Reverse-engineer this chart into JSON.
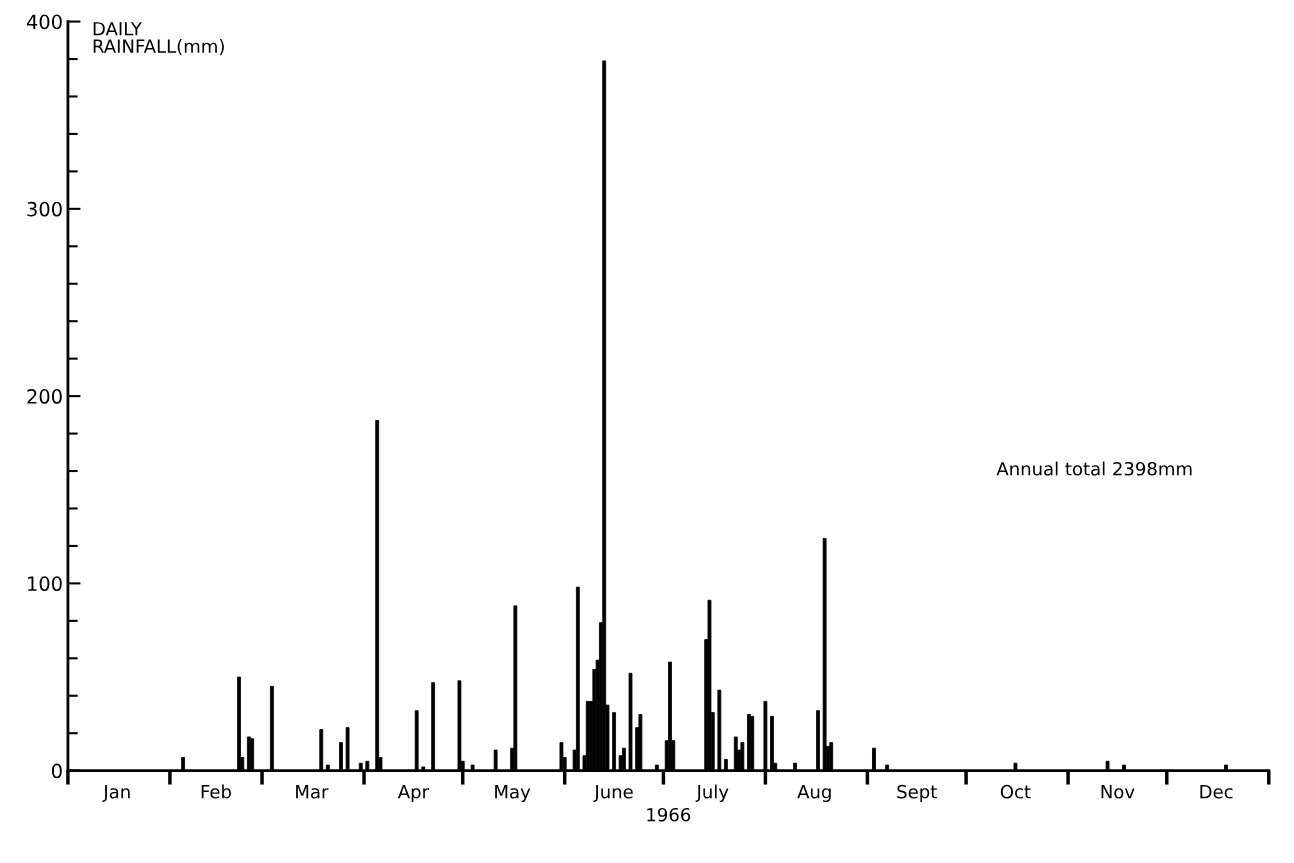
{
  "chart_data": {
    "type": "bar",
    "xlabel": "1966",
    "ylabel": "DAILY\nRAINFALL(mm)",
    "color": "#000000",
    "x": [
      "1966-02-05",
      "1966-02-22",
      "1966-02-23",
      "1966-02-25",
      "1966-02-26",
      "1966-03-04",
      "1966-03-19",
      "1966-03-21",
      "1966-03-25",
      "1966-03-27",
      "1966-03-31",
      "1966-04-02",
      "1966-04-05",
      "1966-04-06",
      "1966-04-17",
      "1966-04-19",
      "1966-04-22",
      "1966-04-30",
      "1966-05-01",
      "1966-05-04",
      "1966-05-11",
      "1966-05-16",
      "1966-05-17",
      "1966-05-31",
      "1966-06-01",
      "1966-06-04",
      "1966-06-05",
      "1966-06-07",
      "1966-06-08",
      "1966-06-09",
      "1966-06-10",
      "1966-06-11",
      "1966-06-12",
      "1966-06-13",
      "1966-06-14",
      "1966-06-16",
      "1966-06-18",
      "1966-06-19",
      "1966-06-21",
      "1966-06-23",
      "1966-06-24",
      "1966-06-29",
      "1966-07-02",
      "1966-07-03",
      "1966-07-04",
      "1966-07-14",
      "1966-07-15",
      "1966-07-16",
      "1966-07-18",
      "1966-07-20",
      "1966-07-23",
      "1966-07-24",
      "1966-07-25",
      "1966-07-27",
      "1966-07-28",
      "1966-08-01",
      "1966-08-03",
      "1966-08-04",
      "1966-08-10",
      "1966-08-17",
      "1966-08-19",
      "1966-08-20",
      "1966-08-21",
      "1966-09-03",
      "1966-09-07",
      "1966-10-16",
      "1966-11-13",
      "1966-11-18",
      "1966-12-19"
    ],
    "values": [
      7,
      50,
      7,
      18,
      17,
      45,
      22,
      3,
      15,
      23,
      4,
      5,
      187,
      7,
      32,
      2,
      47,
      48,
      5,
      3,
      11,
      12,
      88,
      15,
      7,
      11,
      98,
      8,
      37,
      37,
      54,
      59,
      79,
      379,
      35,
      31,
      8,
      12,
      52,
      23,
      30,
      3,
      16,
      58,
      16,
      70,
      91,
      31,
      43,
      6,
      18,
      11,
      15,
      30,
      29,
      37,
      29,
      4,
      4,
      32,
      124,
      13,
      15,
      12,
      3,
      4,
      5,
      3,
      3
    ],
    "xlim": [
      "1966-01-01",
      "1967-01-01"
    ],
    "xticks": [
      {
        "value": "1966-01-01",
        "label": null
      },
      {
        "value": "1966-01-16",
        "label": "Jan"
      },
      {
        "value": "1966-02-01",
        "label": null
      },
      {
        "value": "1966-02-15",
        "label": "Feb"
      },
      {
        "value": "1966-03-01",
        "label": null
      },
      {
        "value": "1966-03-16",
        "label": "Mar"
      },
      {
        "value": "1966-04-01",
        "label": null
      },
      {
        "value": "1966-04-16",
        "label": "Apr"
      },
      {
        "value": "1966-05-01",
        "label": null
      },
      {
        "value": "1966-05-16",
        "label": "May"
      },
      {
        "value": "1966-06-01",
        "label": null
      },
      {
        "value": "1966-06-16",
        "label": "June"
      },
      {
        "value": "1966-07-01",
        "label": null
      },
      {
        "value": "1966-07-16",
        "label": "July"
      },
      {
        "value": "1966-08-01",
        "label": null
      },
      {
        "value": "1966-08-16",
        "label": "Aug"
      },
      {
        "value": "1966-09-01",
        "label": null
      },
      {
        "value": "1966-09-16",
        "label": "Sept"
      },
      {
        "value": "1966-10-01",
        "label": null
      },
      {
        "value": "1966-10-16",
        "label": "Oct"
      },
      {
        "value": "1966-11-01",
        "label": null
      },
      {
        "value": "1966-11-16",
        "label": "Nov"
      },
      {
        "value": "1966-12-01",
        "label": null
      },
      {
        "value": "1966-12-16",
        "label": "Dec"
      },
      {
        "value": "1967-01-01",
        "label": null
      }
    ],
    "ylim": [
      0,
      400
    ],
    "yticks": [
      0,
      {
        "value": 20,
        "label": null
      },
      {
        "value": 40,
        "label": null
      },
      {
        "value": 60,
        "label": null
      },
      {
        "value": 80,
        "label": null
      },
      100,
      {
        "value": 120,
        "label": null
      },
      {
        "value": 140,
        "label": null
      },
      {
        "value": 160,
        "label": null
      },
      {
        "value": 180,
        "label": null
      },
      200,
      {
        "value": 220,
        "label": null
      },
      {
        "value": 240,
        "label": null
      },
      {
        "value": 260,
        "label": null
      },
      {
        "value": 280,
        "label": null
      },
      300,
      {
        "value": 320,
        "label": null
      },
      {
        "value": 340,
        "label": null
      },
      {
        "value": 360,
        "label": null
      },
      {
        "value": 380,
        "label": null
      },
      400
    ],
    "annotations": [
      "Annual total 2398mm"
    ],
    "grid": false,
    "legend": false
  }
}
